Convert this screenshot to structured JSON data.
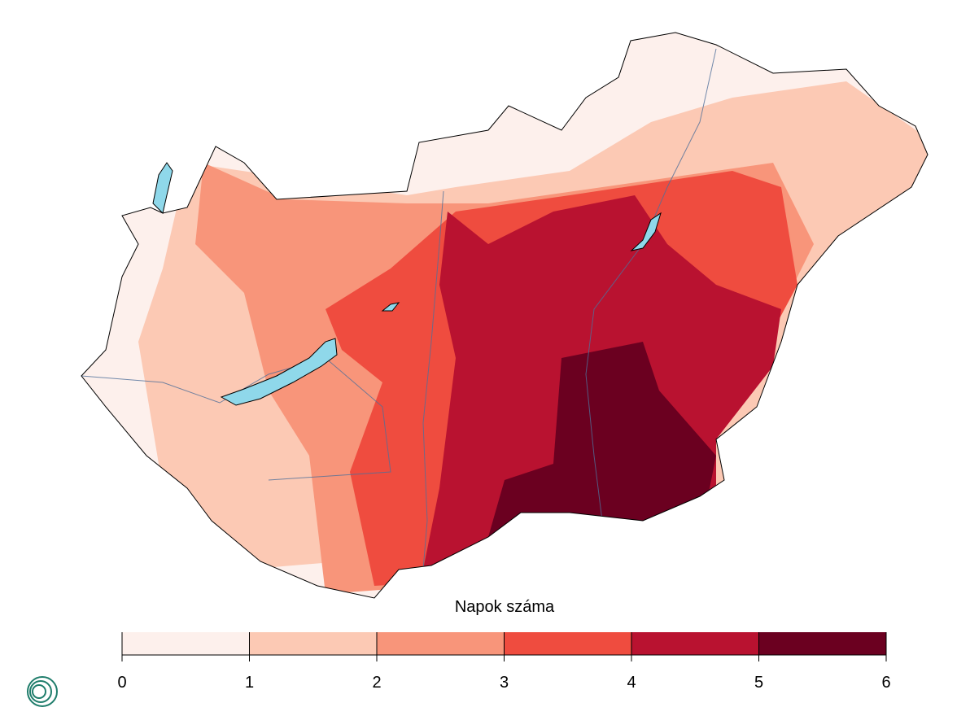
{
  "legend": {
    "title": "Napok száma",
    "ticks": [
      0,
      1,
      2,
      3,
      4,
      5,
      6
    ],
    "colors": [
      "#fdf0ec",
      "#fcc9b4",
      "#f8957a",
      "#ef4c3f",
      "#b91230",
      "#6b0020"
    ]
  }
}
